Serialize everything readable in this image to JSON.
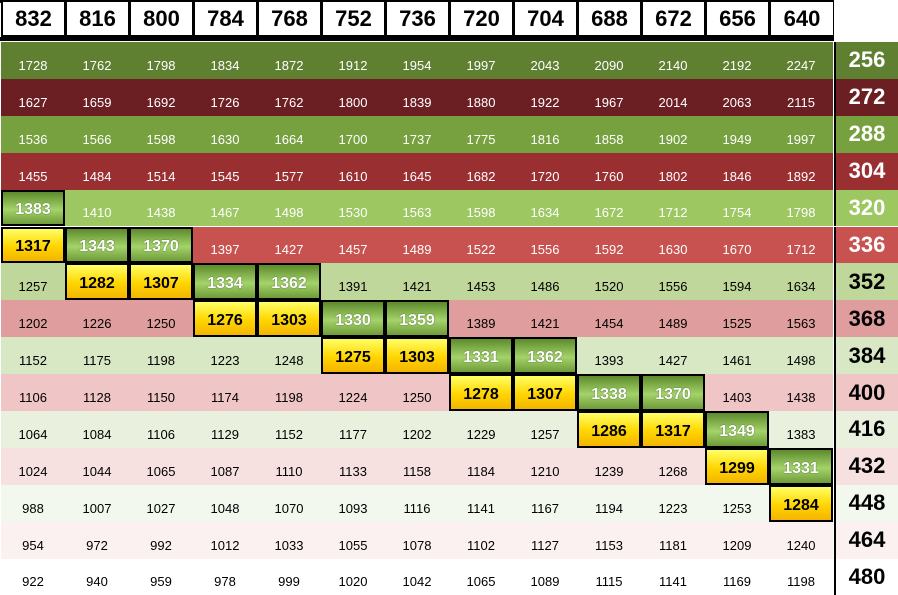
{
  "columns": [
    "832",
    "816",
    "800",
    "784",
    "768",
    "752",
    "736",
    "720",
    "704",
    "688",
    "672",
    "656",
    "640"
  ],
  "rows": [
    {
      "label": "256",
      "values": [
        "1728",
        "1762",
        "1798",
        "1834",
        "1872",
        "1912",
        "1954",
        "1997",
        "2043",
        "2090",
        "2140",
        "2192",
        "2247"
      ],
      "bg": "#5f7f31",
      "color": "#ffffff"
    },
    {
      "label": "272",
      "values": [
        "1627",
        "1659",
        "1692",
        "1726",
        "1762",
        "1800",
        "1839",
        "1880",
        "1922",
        "1967",
        "2014",
        "2063",
        "2115"
      ],
      "bg": "#6b1f22",
      "color": "#ffffff"
    },
    {
      "label": "288",
      "values": [
        "1536",
        "1566",
        "1598",
        "1630",
        "1664",
        "1700",
        "1737",
        "1775",
        "1816",
        "1858",
        "1902",
        "1949",
        "1997"
      ],
      "bg": "#76a13e",
      "color": "#ffffff"
    },
    {
      "label": "304",
      "values": [
        "1455",
        "1484",
        "1514",
        "1545",
        "1577",
        "1610",
        "1645",
        "1682",
        "1720",
        "1760",
        "1802",
        "1846",
        "1892"
      ],
      "bg": "#9a2f32",
      "color": "#ffffff"
    },
    {
      "label": "320",
      "values": [
        "1383",
        "1410",
        "1438",
        "1467",
        "1498",
        "1530",
        "1563",
        "1598",
        "1634",
        "1672",
        "1712",
        "1754",
        "1798"
      ],
      "bg": "#9cc761",
      "color": "#ffffff"
    },
    {
      "label": "336",
      "values": [
        "1317",
        "1343",
        "1370",
        "1397",
        "1427",
        "1457",
        "1489",
        "1522",
        "1556",
        "1592",
        "1630",
        "1670",
        "1712"
      ],
      "bg": "#c85250",
      "color": "#ffffff"
    },
    {
      "label": "352",
      "values": [
        "1257",
        "1282",
        "1307",
        "1334",
        "1362",
        "1391",
        "1421",
        "1453",
        "1486",
        "1520",
        "1556",
        "1594",
        "1634"
      ],
      "bg": "#bfd79a",
      "color": "#000000"
    },
    {
      "label": "368",
      "values": [
        "1202",
        "1226",
        "1250",
        "1276",
        "1303",
        "1330",
        "1359",
        "1389",
        "1421",
        "1454",
        "1489",
        "1525",
        "1563"
      ],
      "bg": "#df9e9d",
      "color": "#000000"
    },
    {
      "label": "384",
      "values": [
        "1152",
        "1175",
        "1198",
        "1223",
        "1248",
        "1275",
        "1303",
        "1331",
        "1362",
        "1393",
        "1427",
        "1461",
        "1498"
      ],
      "bg": "#d8e7c4",
      "color": "#000000"
    },
    {
      "label": "400",
      "values": [
        "1106",
        "1128",
        "1150",
        "1174",
        "1198",
        "1224",
        "1250",
        "1278",
        "1307",
        "1338",
        "1370",
        "1403",
        "1438"
      ],
      "bg": "#efc5c5",
      "color": "#000000"
    },
    {
      "label": "416",
      "values": [
        "1064",
        "1084",
        "1106",
        "1129",
        "1152",
        "1177",
        "1202",
        "1229",
        "1257",
        "1286",
        "1317",
        "1349",
        "1383"
      ],
      "bg": "#e9f1de",
      "color": "#000000"
    },
    {
      "label": "432",
      "values": [
        "1024",
        "1044",
        "1065",
        "1087",
        "1110",
        "1133",
        "1158",
        "1184",
        "1210",
        "1239",
        "1268",
        "1299",
        "1331"
      ],
      "bg": "#f6e0e0",
      "color": "#000000"
    },
    {
      "label": "448",
      "values": [
        "988",
        "1007",
        "1027",
        "1048",
        "1070",
        "1093",
        "1116",
        "1141",
        "1167",
        "1194",
        "1223",
        "1253",
        "1284"
      ],
      "bg": "#f3f8ee",
      "color": "#000000"
    },
    {
      "label": "464",
      "values": [
        "954",
        "972",
        "992",
        "1012",
        "1033",
        "1055",
        "1078",
        "1102",
        "1127",
        "1153",
        "1181",
        "1209",
        "1240"
      ],
      "bg": "#fbf1f1",
      "color": "#000000"
    },
    {
      "label": "480",
      "values": [
        "922",
        "940",
        "959",
        "978",
        "999",
        "1020",
        "1042",
        "1065",
        "1089",
        "1115",
        "1141",
        "1169",
        "1198"
      ],
      "bg": "#ffffff",
      "color": "#000000"
    }
  ],
  "highlighted_yellow": [
    [
      5,
      0
    ],
    [
      6,
      1
    ],
    [
      6,
      2
    ],
    [
      7,
      3
    ],
    [
      7,
      4
    ],
    [
      8,
      5
    ],
    [
      8,
      6
    ],
    [
      9,
      7
    ],
    [
      9,
      8
    ],
    [
      10,
      9
    ],
    [
      10,
      10
    ],
    [
      11,
      11
    ],
    [
      12,
      12
    ]
  ],
  "highlighted_green": [
    [
      4,
      0
    ],
    [
      5,
      1
    ],
    [
      5,
      2
    ],
    [
      6,
      3
    ],
    [
      6,
      4
    ],
    [
      7,
      5
    ],
    [
      7,
      6
    ],
    [
      8,
      7
    ],
    [
      8,
      8
    ],
    [
      9,
      9
    ],
    [
      9,
      10
    ],
    [
      10,
      11
    ],
    [
      11,
      12
    ]
  ]
}
